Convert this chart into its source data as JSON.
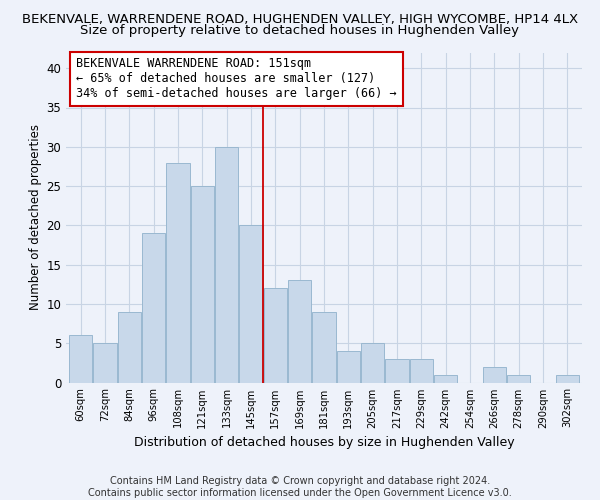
{
  "title": "BEKENVALE, WARRENDENE ROAD, HUGHENDEN VALLEY, HIGH WYCOMBE, HP14 4LX",
  "subtitle": "Size of property relative to detached houses in Hughenden Valley",
  "xlabel": "Distribution of detached houses by size in Hughenden Valley",
  "ylabel": "Number of detached properties",
  "footer_line1": "Contains HM Land Registry data © Crown copyright and database right 2024.",
  "footer_line2": "Contains public sector information licensed under the Open Government Licence v3.0.",
  "categories": [
    "60sqm",
    "72sqm",
    "84sqm",
    "96sqm",
    "108sqm",
    "121sqm",
    "133sqm",
    "145sqm",
    "157sqm",
    "169sqm",
    "181sqm",
    "193sqm",
    "205sqm",
    "217sqm",
    "229sqm",
    "242sqm",
    "254sqm",
    "266sqm",
    "278sqm",
    "290sqm",
    "302sqm"
  ],
  "values": [
    6,
    5,
    9,
    19,
    28,
    25,
    30,
    20,
    12,
    13,
    9,
    4,
    5,
    3,
    3,
    1,
    0,
    2,
    1,
    0,
    1
  ],
  "bar_color": "#c8d8ea",
  "bar_edge_color": "#9ab8d0",
  "bar_edge_width": 0.7,
  "vline_color": "#cc0000",
  "annotation_title": "BEKENVALE WARRENDENE ROAD: 151sqm",
  "annotation_line1": "← 65% of detached houses are smaller (127)",
  "annotation_line2": "34% of semi-detached houses are larger (66) →",
  "ylim": [
    0,
    42
  ],
  "yticks": [
    0,
    5,
    10,
    15,
    20,
    25,
    30,
    35,
    40
  ],
  "grid_color": "#c8d4e4",
  "background_color": "#eef2fa",
  "title_fontsize": 9.5,
  "subtitle_fontsize": 9.5,
  "xlabel_fontsize": 9,
  "ylabel_fontsize": 8.5,
  "annotation_fontsize": 8.5,
  "footer_fontsize": 7
}
